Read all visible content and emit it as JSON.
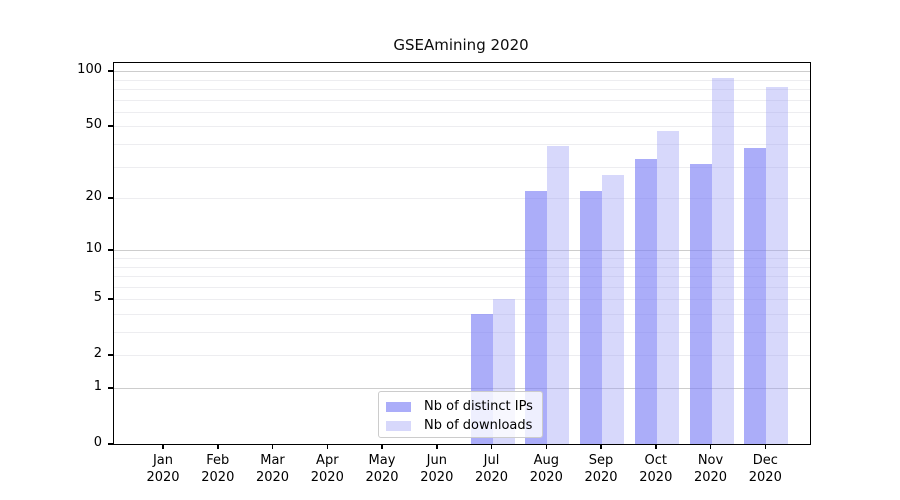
{
  "chart_data": {
    "type": "bar",
    "title": "GSEAmining 2020",
    "x": [
      {
        "month": "Jan",
        "year": "2020"
      },
      {
        "month": "Feb",
        "year": "2020"
      },
      {
        "month": "Mar",
        "year": "2020"
      },
      {
        "month": "Apr",
        "year": "2020"
      },
      {
        "month": "May",
        "year": "2020"
      },
      {
        "month": "Jun",
        "year": "2020"
      },
      {
        "month": "Jul",
        "year": "2020"
      },
      {
        "month": "Aug",
        "year": "2020"
      },
      {
        "month": "Sep",
        "year": "2020"
      },
      {
        "month": "Oct",
        "year": "2020"
      },
      {
        "month": "Nov",
        "year": "2020"
      },
      {
        "month": "Dec",
        "year": "2020"
      }
    ],
    "series": [
      {
        "name": "Nb of distinct IPs",
        "color": "rgba(122,125,246,0.63)",
        "values": [
          0,
          0,
          0,
          0,
          0,
          0,
          4,
          22,
          22,
          33,
          31,
          38
        ]
      },
      {
        "name": "Nb of downloads",
        "color": "rgba(154,157,245,0.40)",
        "values": [
          0,
          0,
          0,
          0,
          0,
          0,
          5,
          39,
          27,
          47,
          92,
          82
        ]
      }
    ],
    "y_axis": {
      "scale": "log1p",
      "range": [
        0,
        110
      ],
      "tick_values": [
        100,
        50,
        20,
        10,
        5,
        2,
        1,
        0
      ],
      "tick_labels": [
        "100",
        "50",
        "20",
        "10",
        "5",
        "2",
        "1",
        "0"
      ],
      "major_grid_values": [
        1,
        10,
        100
      ],
      "minor_grid_values": [
        2,
        3,
        4,
        5,
        6,
        7,
        8,
        9,
        20,
        30,
        40,
        50,
        60,
        70,
        80,
        90
      ]
    },
    "grid": true,
    "legend": {
      "position": "lower center",
      "entries": [
        "Nb of distinct IPs",
        "Nb of downloads"
      ]
    },
    "colors": {
      "grid_major": "#cdcdcd",
      "grid_minor": "#ededf0",
      "spine": "#000000",
      "text": "#000000"
    }
  }
}
